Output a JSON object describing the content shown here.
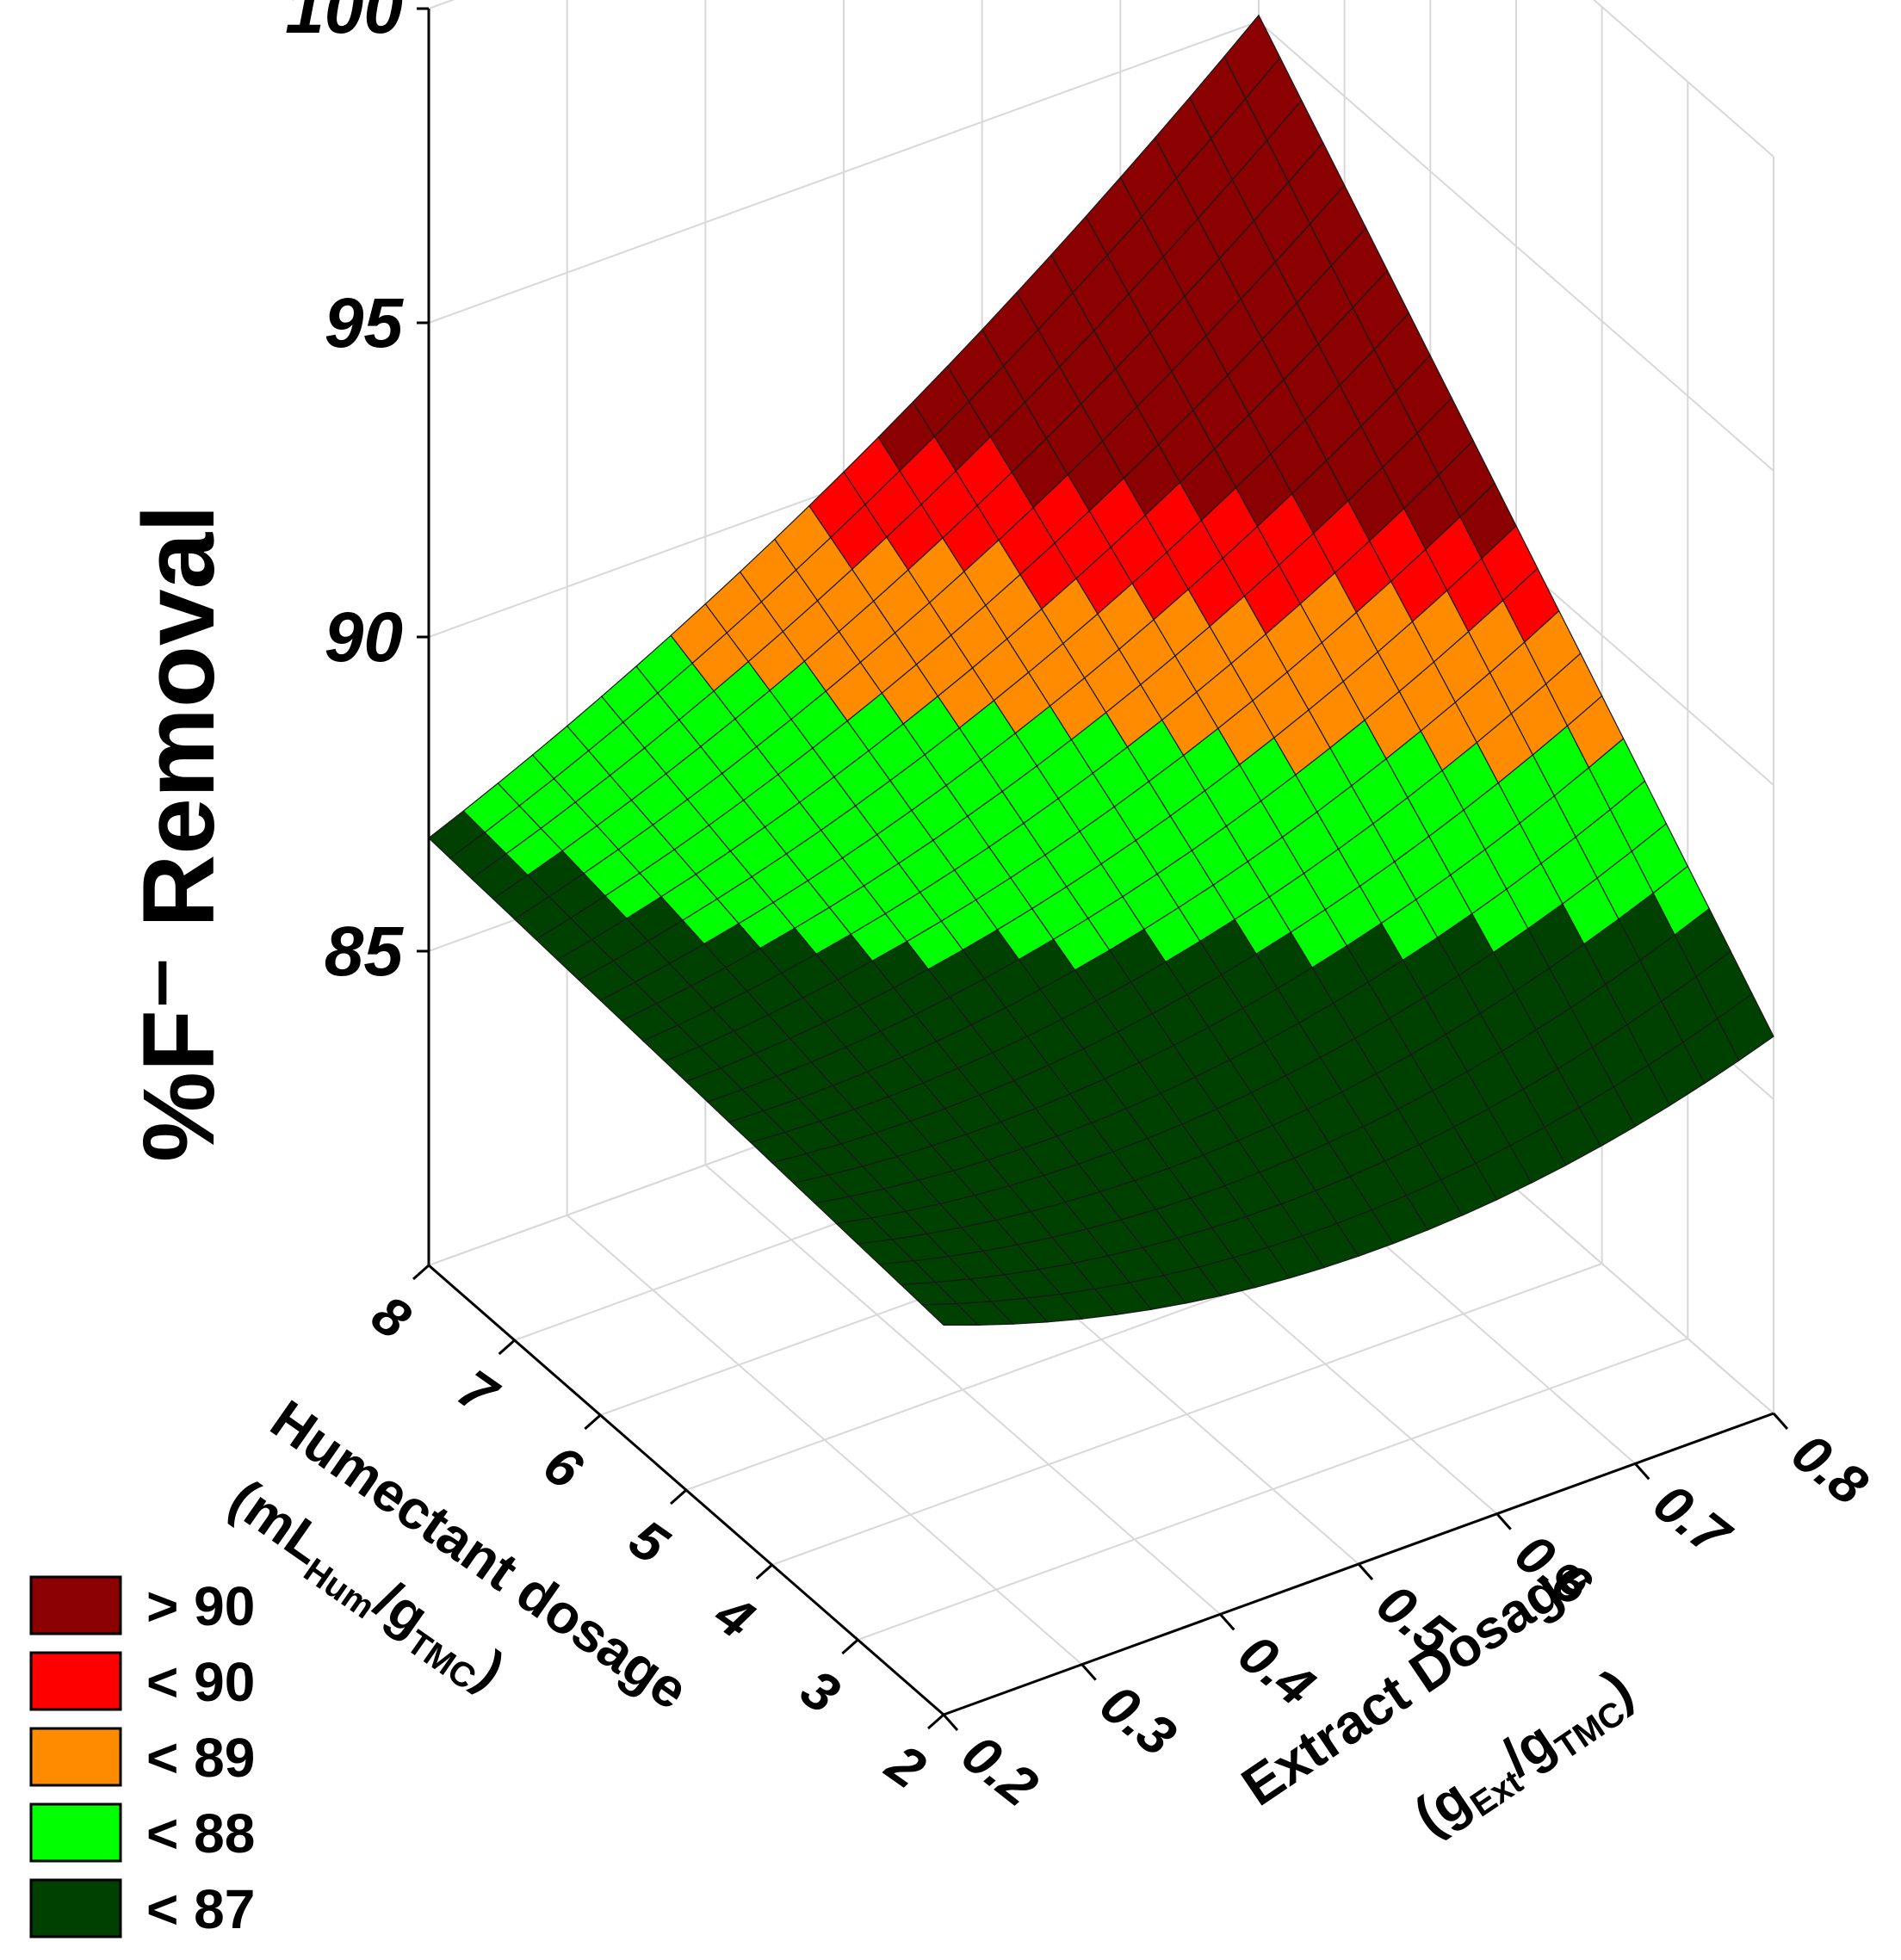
{
  "chart_data": {
    "type": "surface3d",
    "zlabel": "%F⁻ Removal",
    "xlabel": "Extract Dosage",
    "xlabel_unit": "(g",
    "xlabel_sub1": "Ext",
    "xlabel_mid": "/g",
    "xlabel_sub2": "TMC",
    "xlabel_close": ")",
    "ylabel": "Humectant dosage",
    "ylabel_unit": "(mL",
    "ylabel_sub1": "Hum",
    "ylabel_mid": "/g",
    "ylabel_sub2": "TMC",
    "ylabel_close": ")",
    "x_ticks": [
      "0.2",
      "0.3",
      "0.4",
      "0.5",
      "0.6",
      "0.7",
      "0.8"
    ],
    "y_ticks": [
      "2",
      "3",
      "4",
      "5",
      "6",
      "7",
      "8"
    ],
    "z_ticks": [
      "85",
      "90",
      "95",
      "100"
    ],
    "xlim": [
      0.2,
      0.8
    ],
    "ylim": [
      2,
      8
    ],
    "zlim": [
      80,
      100
    ],
    "surface_corners": {
      "x0.2_y2": 86.2,
      "x0.8_y2": 86.0,
      "x0.2_y8": 86.8,
      "x0.8_y8": 95.1
    },
    "legend": [
      {
        "label": "> 90",
        "color": "#8b0000"
      },
      {
        "label": "< 90",
        "color": "#ff0000"
      },
      {
        "label": "< 89",
        "color": "#ff8c00"
      },
      {
        "label": "< 88",
        "color": "#00ff00"
      },
      {
        "label": "< 87",
        "color": "#004000"
      }
    ],
    "grid": true,
    "legend_position": "bottom-left"
  }
}
